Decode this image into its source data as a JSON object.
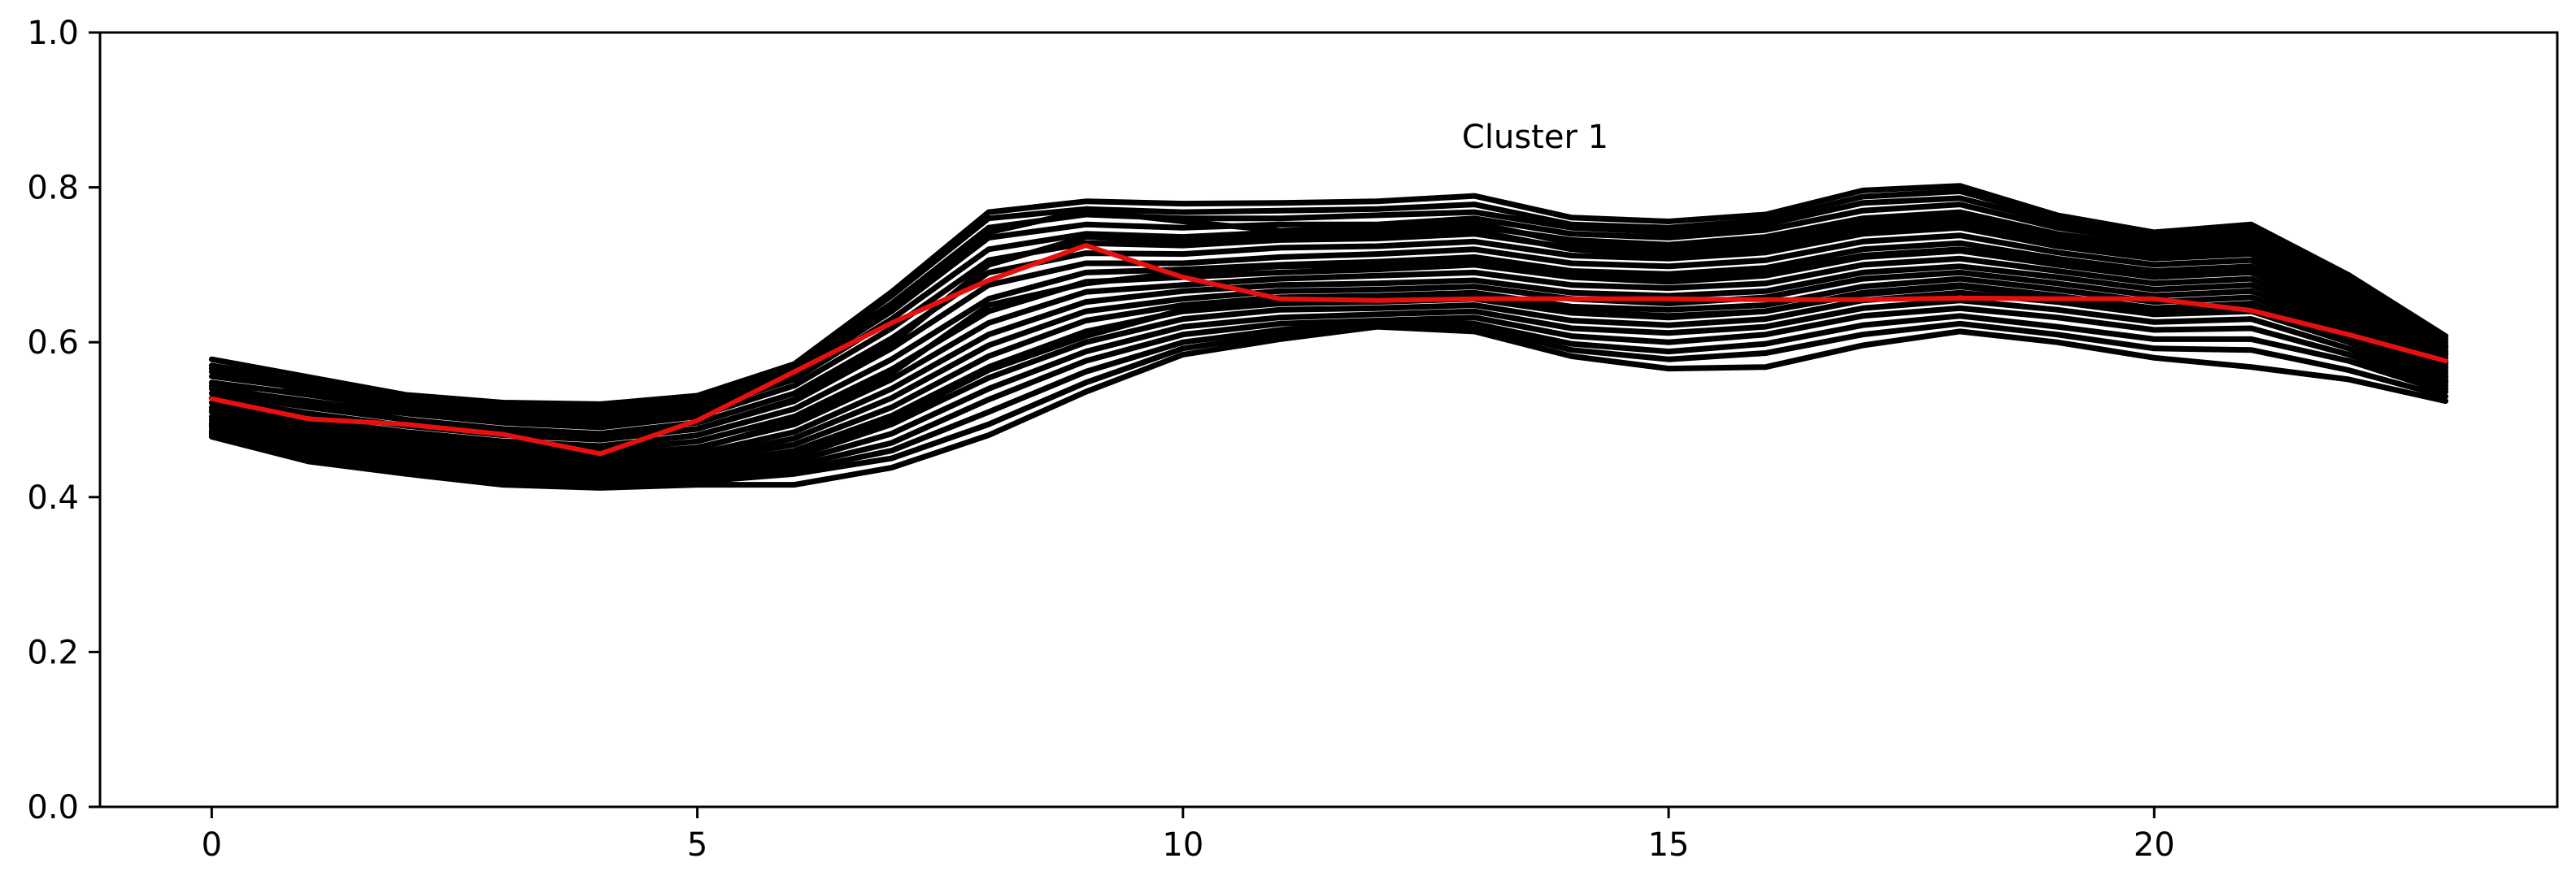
{
  "chart_data": {
    "type": "line",
    "title": "Cluster 1",
    "xlabel": "",
    "ylabel": "",
    "xlim": [
      -1.15,
      24.15
    ],
    "ylim": [
      0.0,
      1.0
    ],
    "x_ticks": [
      0,
      5,
      10,
      15,
      20
    ],
    "y_ticks": [
      0.0,
      0.2,
      0.4,
      0.6,
      0.8,
      1.0
    ],
    "y_tick_labels": [
      "0.0",
      "0.2",
      "0.4",
      "0.6",
      "0.8",
      "1.0"
    ],
    "grid": false,
    "legend": "none",
    "x": [
      0,
      1,
      2,
      3,
      4,
      5,
      6,
      7,
      8,
      9,
      10,
      11,
      12,
      13,
      14,
      15,
      16,
      17,
      18,
      19,
      20,
      21,
      22,
      23
    ],
    "members_color": "#000000",
    "centroid_color": "#e8100f",
    "series": [
      {
        "role": "member",
        "values": [
          0.578,
          0.555,
          0.532,
          0.522,
          0.52,
          0.531,
          0.572,
          0.665,
          0.768,
          0.782,
          0.779,
          0.78,
          0.782,
          0.789,
          0.761,
          0.756,
          0.765,
          0.796,
          0.802,
          0.764,
          0.742,
          0.752,
          0.687,
          0.608
        ]
      },
      {
        "role": "member",
        "values": [
          0.57,
          0.55,
          0.53,
          0.52,
          0.516,
          0.528,
          0.57,
          0.66,
          0.76,
          0.772,
          0.768,
          0.77,
          0.772,
          0.778,
          0.752,
          0.748,
          0.758,
          0.788,
          0.795,
          0.76,
          0.738,
          0.748,
          0.682,
          0.604
        ]
      },
      {
        "role": "member",
        "values": [
          0.562,
          0.545,
          0.526,
          0.516,
          0.512,
          0.524,
          0.566,
          0.65,
          0.748,
          0.765,
          0.76,
          0.76,
          0.764,
          0.768,
          0.748,
          0.742,
          0.752,
          0.78,
          0.786,
          0.755,
          0.735,
          0.742,
          0.678,
          0.6
        ]
      },
      {
        "role": "member",
        "values": [
          0.556,
          0.54,
          0.52,
          0.51,
          0.505,
          0.518,
          0.56,
          0.64,
          0.735,
          0.752,
          0.748,
          0.752,
          0.752,
          0.76,
          0.74,
          0.735,
          0.745,
          0.77,
          0.778,
          0.748,
          0.73,
          0.736,
          0.672,
          0.596
        ]
      },
      {
        "role": "member",
        "values": [
          0.548,
          0.532,
          0.514,
          0.503,
          0.498,
          0.512,
          0.552,
          0.63,
          0.72,
          0.74,
          0.736,
          0.742,
          0.742,
          0.75,
          0.732,
          0.726,
          0.736,
          0.76,
          0.768,
          0.74,
          0.724,
          0.73,
          0.668,
          0.592
        ]
      },
      {
        "role": "member",
        "values": [
          0.54,
          0.524,
          0.508,
          0.496,
          0.49,
          0.504,
          0.544,
          0.618,
          0.706,
          0.728,
          0.725,
          0.732,
          0.734,
          0.74,
          0.722,
          0.718,
          0.726,
          0.75,
          0.758,
          0.732,
          0.716,
          0.722,
          0.662,
          0.588
        ]
      },
      {
        "role": "member",
        "values": [
          0.534,
          0.516,
          0.5,
          0.488,
          0.482,
          0.496,
          0.534,
          0.605,
          0.69,
          0.715,
          0.714,
          0.722,
          0.724,
          0.73,
          0.712,
          0.708,
          0.716,
          0.74,
          0.748,
          0.724,
          0.708,
          0.714,
          0.656,
          0.584
        ]
      },
      {
        "role": "member",
        "values": [
          0.528,
          0.508,
          0.492,
          0.48,
          0.474,
          0.488,
          0.524,
          0.592,
          0.674,
          0.702,
          0.702,
          0.71,
          0.714,
          0.72,
          0.702,
          0.698,
          0.706,
          0.73,
          0.738,
          0.716,
          0.7,
          0.706,
          0.65,
          0.58
        ]
      },
      {
        "role": "member",
        "values": [
          0.522,
          0.5,
          0.484,
          0.472,
          0.466,
          0.48,
          0.514,
          0.578,
          0.656,
          0.69,
          0.694,
          0.7,
          0.704,
          0.71,
          0.692,
          0.688,
          0.696,
          0.72,
          0.728,
          0.708,
          0.692,
          0.698,
          0.644,
          0.576
        ]
      },
      {
        "role": "member",
        "values": [
          0.516,
          0.494,
          0.478,
          0.466,
          0.46,
          0.472,
          0.504,
          0.565,
          0.64,
          0.678,
          0.684,
          0.69,
          0.694,
          0.7,
          0.684,
          0.678,
          0.686,
          0.71,
          0.718,
          0.7,
          0.684,
          0.69,
          0.638,
          0.572
        ]
      },
      {
        "role": "member",
        "values": [
          0.51,
          0.488,
          0.472,
          0.46,
          0.454,
          0.464,
          0.494,
          0.552,
          0.625,
          0.665,
          0.674,
          0.682,
          0.686,
          0.69,
          0.674,
          0.67,
          0.676,
          0.7,
          0.708,
          0.692,
          0.676,
          0.682,
          0.632,
          0.568
        ]
      },
      {
        "role": "member",
        "values": [
          0.504,
          0.482,
          0.466,
          0.454,
          0.448,
          0.456,
          0.484,
          0.54,
          0.61,
          0.652,
          0.666,
          0.674,
          0.676,
          0.68,
          0.664,
          0.66,
          0.666,
          0.69,
          0.698,
          0.684,
          0.668,
          0.674,
          0.626,
          0.564
        ]
      },
      {
        "role": "member",
        "values": [
          0.5,
          0.478,
          0.462,
          0.45,
          0.444,
          0.45,
          0.476,
          0.528,
          0.596,
          0.64,
          0.656,
          0.666,
          0.668,
          0.672,
          0.656,
          0.65,
          0.658,
          0.682,
          0.69,
          0.676,
          0.66,
          0.666,
          0.62,
          0.56
        ]
      },
      {
        "role": "member",
        "values": [
          0.496,
          0.474,
          0.458,
          0.446,
          0.44,
          0.446,
          0.468,
          0.516,
          0.582,
          0.628,
          0.648,
          0.658,
          0.66,
          0.664,
          0.646,
          0.642,
          0.648,
          0.672,
          0.682,
          0.668,
          0.652,
          0.658,
          0.614,
          0.556
        ]
      },
      {
        "role": "member",
        "values": [
          0.494,
          0.47,
          0.454,
          0.442,
          0.436,
          0.44,
          0.46,
          0.505,
          0.568,
          0.614,
          0.64,
          0.65,
          0.652,
          0.656,
          0.638,
          0.632,
          0.64,
          0.664,
          0.674,
          0.66,
          0.644,
          0.65,
          0.608,
          0.552
        ]
      },
      {
        "role": "member",
        "values": [
          0.49,
          0.466,
          0.45,
          0.438,
          0.432,
          0.436,
          0.452,
          0.494,
          0.554,
          0.6,
          0.63,
          0.642,
          0.644,
          0.648,
          0.628,
          0.622,
          0.63,
          0.654,
          0.664,
          0.652,
          0.636,
          0.64,
          0.6,
          0.548
        ]
      },
      {
        "role": "member",
        "values": [
          0.486,
          0.462,
          0.446,
          0.434,
          0.428,
          0.432,
          0.446,
          0.482,
          0.54,
          0.588,
          0.62,
          0.632,
          0.636,
          0.64,
          0.618,
          0.612,
          0.62,
          0.644,
          0.654,
          0.642,
          0.626,
          0.63,
          0.592,
          0.544
        ]
      },
      {
        "role": "member",
        "values": [
          0.484,
          0.458,
          0.442,
          0.428,
          0.424,
          0.428,
          0.44,
          0.47,
          0.526,
          0.576,
          0.61,
          0.624,
          0.628,
          0.632,
          0.608,
          0.6,
          0.61,
          0.634,
          0.644,
          0.632,
          0.616,
          0.618,
          0.584,
          0.54
        ]
      },
      {
        "role": "member",
        "values": [
          0.482,
          0.454,
          0.438,
          0.424,
          0.42,
          0.424,
          0.434,
          0.46,
          0.51,
          0.562,
          0.6,
          0.616,
          0.626,
          0.624,
          0.598,
          0.588,
          0.598,
          0.622,
          0.634,
          0.62,
          0.604,
          0.604,
          0.576,
          0.536
        ]
      },
      {
        "role": "member",
        "values": [
          0.48,
          0.45,
          0.434,
          0.42,
          0.416,
          0.42,
          0.43,
          0.45,
          0.494,
          0.548,
          0.592,
          0.61,
          0.624,
          0.62,
          0.59,
          0.578,
          0.586,
          0.61,
          0.624,
          0.61,
          0.592,
          0.59,
          0.564,
          0.53
        ]
      },
      {
        "role": "member",
        "values": [
          0.478,
          0.446,
          0.43,
          0.416,
          0.412,
          0.416,
          0.416,
          0.438,
          0.48,
          0.536,
          0.584,
          0.604,
          0.62,
          0.614,
          0.582,
          0.566,
          0.568,
          0.596,
          0.614,
          0.6,
          0.58,
          0.568,
          0.552,
          0.524
        ]
      },
      {
        "role": "member",
        "values": [
          0.566,
          0.536,
          0.512,
          0.5,
          0.494,
          0.508,
          0.556,
          0.642,
          0.742,
          0.77,
          0.756,
          0.744,
          0.748,
          0.754,
          0.728,
          0.722,
          0.73,
          0.756,
          0.762,
          0.736,
          0.72,
          0.728,
          0.664,
          0.594
        ]
      },
      {
        "role": "member",
        "values": [
          0.512,
          0.492,
          0.47,
          0.458,
          0.45,
          0.462,
          0.498,
          0.56,
          0.648,
          0.676,
          0.69,
          0.698,
          0.7,
          0.706,
          0.69,
          0.684,
          0.69,
          0.712,
          0.72,
          0.706,
          0.69,
          0.694,
          0.64,
          0.574
        ]
      },
      {
        "role": "member",
        "values": [
          0.544,
          0.52,
          0.5,
          0.486,
          0.476,
          0.488,
          0.526,
          0.598,
          0.7,
          0.736,
          0.73,
          0.736,
          0.738,
          0.744,
          0.72,
          0.712,
          0.72,
          0.744,
          0.752,
          0.728,
          0.712,
          0.718,
          0.658,
          0.586
        ]
      },
      {
        "role": "member",
        "values": [
          0.492,
          0.468,
          0.45,
          0.436,
          0.43,
          0.438,
          0.458,
          0.5,
          0.564,
          0.608,
          0.642,
          0.654,
          0.656,
          0.66,
          0.64,
          0.634,
          0.64,
          0.662,
          0.672,
          0.658,
          0.64,
          0.644,
          0.604,
          0.55
        ]
      },
      {
        "role": "centroid",
        "values": [
          0.527,
          0.501,
          0.494,
          0.481,
          0.456,
          0.499,
          0.562,
          0.625,
          0.68,
          0.725,
          0.684,
          0.656,
          0.654,
          0.656,
          0.656,
          0.656,
          0.655,
          0.655,
          0.657,
          0.656,
          0.656,
          0.641,
          0.61,
          0.576
        ]
      }
    ]
  }
}
